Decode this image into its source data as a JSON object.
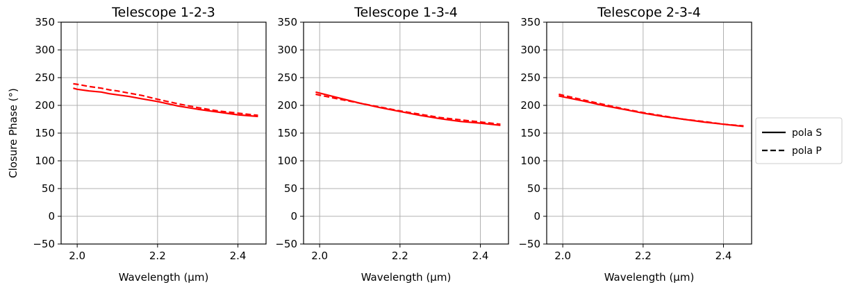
{
  "chart_data": [
    {
      "type": "line",
      "title": "Telescope 1-2-3",
      "xlabel": "Wavelength (μm)",
      "ylabel": "Closure Phase (°)",
      "xlim": [
        1.96,
        2.47
      ],
      "ylim": [
        -50,
        350
      ],
      "xticks": [
        "2.0",
        "2.2",
        "2.4"
      ],
      "yticks": [
        "−50",
        "0",
        "50",
        "100",
        "150",
        "200",
        "250",
        "300",
        "350"
      ],
      "grid": true,
      "series": [
        {
          "name": "pola S",
          "style": "solid",
          "color": "#ff0000",
          "x": [
            1.99,
            2.0,
            2.03,
            2.06,
            2.08,
            2.1,
            2.13,
            2.16,
            2.2,
            2.25,
            2.3,
            2.35,
            2.4,
            2.45
          ],
          "y": [
            231,
            229,
            226,
            224,
            221,
            219,
            216,
            212,
            207,
            199,
            193,
            188,
            183,
            180
          ]
        },
        {
          "name": "pola P",
          "style": "dashed",
          "color": "#ff0000",
          "x": [
            1.99,
            2.0,
            2.03,
            2.06,
            2.08,
            2.1,
            2.13,
            2.16,
            2.2,
            2.25,
            2.3,
            2.35,
            2.4,
            2.45
          ],
          "y": [
            239,
            238,
            234,
            231,
            228,
            226,
            222,
            218,
            211,
            203,
            196,
            190,
            186,
            182
          ]
        }
      ]
    },
    {
      "type": "line",
      "title": "Telescope 1-3-4",
      "xlabel": "Wavelength (μm)",
      "ylabel": "",
      "xlim": [
        1.96,
        2.47
      ],
      "ylim": [
        -50,
        350
      ],
      "xticks": [
        "2.0",
        "2.2",
        "2.4"
      ],
      "yticks": [
        "−50",
        "0",
        "50",
        "100",
        "150",
        "200",
        "250",
        "300",
        "350"
      ],
      "grid": true,
      "series": [
        {
          "name": "pola S",
          "style": "solid",
          "color": "#ff0000",
          "x": [
            1.99,
            2.05,
            2.1,
            2.15,
            2.2,
            2.25,
            2.3,
            2.35,
            2.4,
            2.45
          ],
          "y": [
            224,
            213,
            204,
            196,
            189,
            182,
            176,
            171,
            168,
            164
          ]
        },
        {
          "name": "pola P",
          "style": "dashed",
          "color": "#ff0000",
          "x": [
            1.99,
            2.05,
            2.1,
            2.15,
            2.2,
            2.25,
            2.3,
            2.35,
            2.4,
            2.45
          ],
          "y": [
            220,
            211,
            204,
            197,
            190,
            184,
            178,
            174,
            170,
            166
          ]
        }
      ]
    },
    {
      "type": "line",
      "title": "Telescope 2-3-4",
      "xlabel": "Wavelength (μm)",
      "ylabel": "",
      "xlim": [
        1.96,
        2.47
      ],
      "ylim": [
        -50,
        350
      ],
      "xticks": [
        "2.0",
        "2.2",
        "2.4"
      ],
      "yticks": [
        "−50",
        "0",
        "50",
        "100",
        "150",
        "200",
        "250",
        "300",
        "350"
      ],
      "grid": true,
      "series": [
        {
          "name": "pola S",
          "style": "solid",
          "color": "#ff0000",
          "x": [
            1.99,
            2.05,
            2.1,
            2.15,
            2.2,
            2.25,
            2.3,
            2.35,
            2.4,
            2.45
          ],
          "y": [
            217,
            208,
            200,
            193,
            186,
            180,
            175,
            170,
            166,
            162
          ]
        },
        {
          "name": "pola P",
          "style": "dashed",
          "color": "#ff0000",
          "x": [
            1.99,
            2.05,
            2.1,
            2.15,
            2.2,
            2.25,
            2.3,
            2.35,
            2.4,
            2.45
          ],
          "y": [
            220,
            210,
            202,
            194,
            187,
            181,
            175,
            171,
            166,
            163
          ]
        }
      ]
    }
  ],
  "legend": {
    "placement": "right",
    "items": [
      {
        "label": "pola S",
        "style": "solid"
      },
      {
        "label": "pola P",
        "style": "dashed"
      }
    ]
  }
}
